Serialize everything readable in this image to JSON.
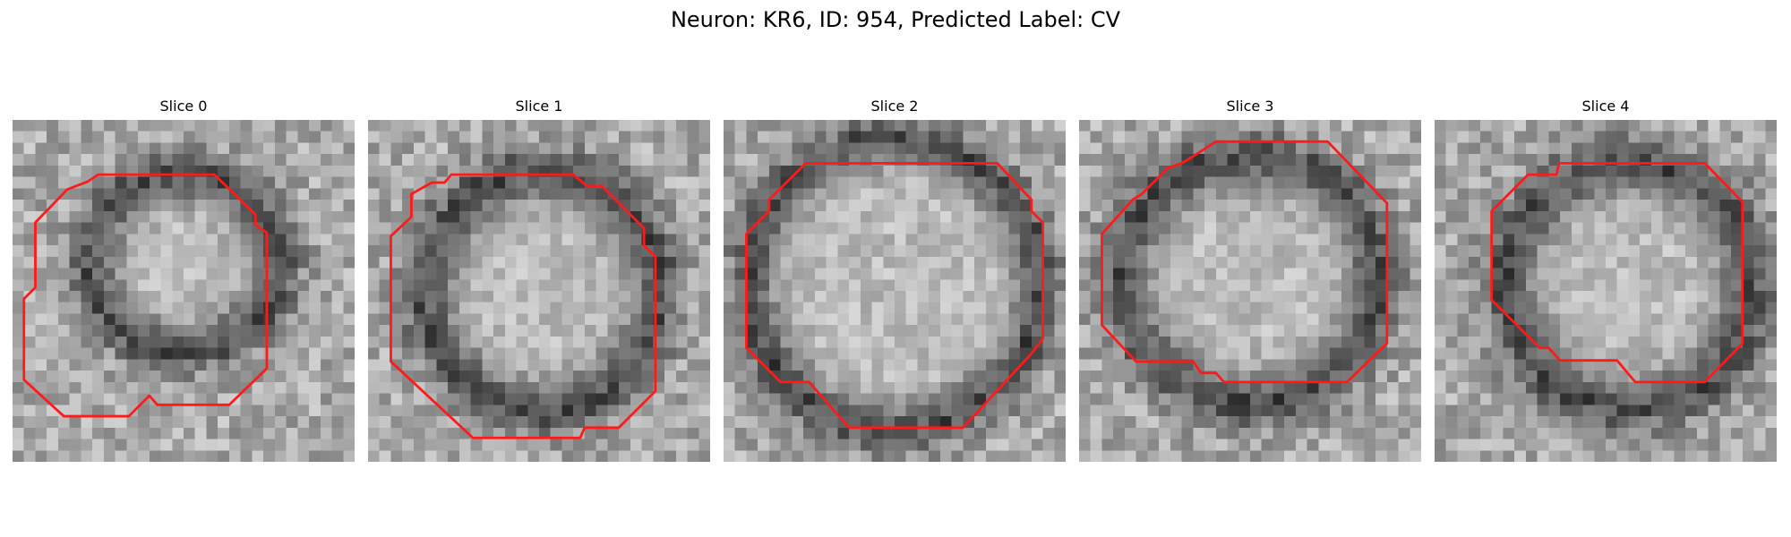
{
  "figure": {
    "title": "Neuron: KR6, ID: 954, Predicted Label: CV"
  },
  "contour_color": "#ff1a1a",
  "panels": [
    {
      "title": "Slice 0",
      "grid_size": 30,
      "seed": 11,
      "ring": {
        "cx": 15.0,
        "cy": 12.5,
        "rx": 8.0,
        "ry": 7.5,
        "thickness": 2.2
      },
      "contour": [
        [
          7.5,
          4.8
        ],
        [
          17.7,
          4.8
        ],
        [
          21.3,
          8.3
        ],
        [
          21.3,
          9.2
        ],
        [
          22.3,
          9.9
        ],
        [
          22.3,
          21.8
        ],
        [
          19.0,
          25.0
        ],
        [
          12.7,
          25.0
        ],
        [
          12.0,
          24.2
        ],
        [
          10.2,
          26.0
        ],
        [
          4.5,
          26.0
        ],
        [
          1.0,
          22.8
        ],
        [
          1.0,
          15.7
        ],
        [
          2.0,
          14.7
        ],
        [
          2.0,
          9.0
        ],
        [
          4.8,
          6.1
        ],
        [
          6.6,
          5.4
        ]
      ]
    },
    {
      "title": "Slice 1",
      "grid_size": 30,
      "seed": 23,
      "ring": {
        "cx": 15.3,
        "cy": 15.0,
        "rx": 10.0,
        "ry": 10.2,
        "thickness": 2.4
      },
      "contour": [
        [
          7.3,
          4.8
        ],
        [
          18.0,
          4.8
        ],
        [
          19.2,
          5.8
        ],
        [
          20.5,
          5.8
        ],
        [
          24.2,
          9.5
        ],
        [
          24.2,
          11.0
        ],
        [
          25.2,
          12.0
        ],
        [
          25.2,
          23.8
        ],
        [
          22.0,
          27.0
        ],
        [
          19.0,
          27.0
        ],
        [
          18.6,
          27.9
        ],
        [
          9.2,
          27.9
        ],
        [
          2.0,
          21.2
        ],
        [
          2.0,
          10.2
        ],
        [
          3.8,
          8.5
        ],
        [
          3.8,
          6.5
        ],
        [
          5.6,
          5.5
        ],
        [
          6.7,
          5.5
        ]
      ]
    },
    {
      "title": "Slice 2",
      "grid_size": 30,
      "seed": 37,
      "ring": {
        "cx": 15.0,
        "cy": 14.5,
        "rx": 12.5,
        "ry": 12.5,
        "thickness": 2.2
      },
      "contour": [
        [
          7.2,
          3.8
        ],
        [
          24.0,
          3.8
        ],
        [
          27.0,
          7.0
        ],
        [
          27.0,
          8.0
        ],
        [
          28.0,
          9.0
        ],
        [
          28.0,
          19.2
        ],
        [
          27.0,
          20.5
        ],
        [
          21.0,
          27.0
        ],
        [
          11.0,
          27.0
        ],
        [
          7.5,
          23.0
        ],
        [
          5.0,
          23.0
        ],
        [
          2.0,
          20.0
        ],
        [
          2.0,
          10.0
        ],
        [
          4.0,
          8.0
        ],
        [
          4.0,
          7.0
        ]
      ]
    },
    {
      "title": "Slice 3",
      "grid_size": 30,
      "seed": 52,
      "ring": {
        "cx": 15.0,
        "cy": 14.0,
        "rx": 11.0,
        "ry": 10.5,
        "thickness": 2.4
      },
      "contour": [
        [
          12.0,
          1.9
        ],
        [
          21.8,
          1.9
        ],
        [
          27.0,
          7.3
        ],
        [
          27.0,
          19.6
        ],
        [
          23.5,
          23.0
        ],
        [
          12.7,
          23.0
        ],
        [
          12.0,
          22.2
        ],
        [
          10.7,
          22.2
        ],
        [
          10.0,
          21.2
        ],
        [
          5.0,
          21.2
        ],
        [
          2.0,
          18.0
        ],
        [
          2.0,
          10.0
        ],
        [
          4.7,
          7.0
        ],
        [
          5.5,
          6.5
        ],
        [
          7.8,
          4.2
        ],
        [
          9.0,
          3.8
        ],
        [
          10.0,
          3.2
        ]
      ]
    },
    {
      "title": "Slice 4",
      "grid_size": 30,
      "seed": 68,
      "ring": {
        "cx": 17.0,
        "cy": 14.5,
        "rx": 10.5,
        "ry": 10.5,
        "thickness": 2.6
      },
      "contour": [
        [
          10.9,
          3.8
        ],
        [
          23.7,
          3.8
        ],
        [
          27.0,
          7.2
        ],
        [
          27.0,
          19.6
        ],
        [
          23.7,
          23.0
        ],
        [
          17.6,
          23.0
        ],
        [
          16.0,
          21.1
        ],
        [
          11.0,
          21.1
        ],
        [
          10.0,
          20.0
        ],
        [
          9.2,
          20.0
        ],
        [
          5.0,
          15.8
        ],
        [
          5.0,
          8.0
        ],
        [
          8.2,
          4.8
        ],
        [
          10.7,
          4.8
        ]
      ]
    }
  ]
}
